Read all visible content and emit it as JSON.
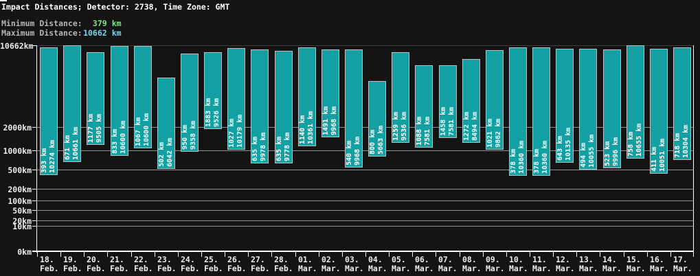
{
  "header": {
    "title": "Impact Distances; Detector: 2738, Time Zone: GMT",
    "min_label": "Minimum Distance:",
    "min_value": "379",
    "max_label": "Maximum Distance:",
    "max_value": "10662",
    "unit": "km"
  },
  "colors": {
    "background": "#151414",
    "bar_fill": "#12a0a3",
    "bar_border": "#bebebe",
    "gridline": "#8f8f8f",
    "top_gridline": "#3e3e3e",
    "axis": "#ffffff",
    "text": "#ececec",
    "stat_label": "#b6b6b6",
    "min_value_color": "#7de87d",
    "max_value_color": "#73d7ea",
    "bar_label_text": "#ffffff"
  },
  "chart_data": {
    "type": "bar",
    "subtype": "floating-range-bars",
    "title": "Impact Distances; Detector: 2738, Time Zone: GMT",
    "legend": "none",
    "grid": "horizontal",
    "y_axis": {
      "unit": "km",
      "scale": "compressed-log (each decade doubles in pixel height)",
      "max_value": 10662,
      "ticks": [
        10662,
        2000,
        1000,
        500,
        200,
        100,
        50,
        20,
        10,
        0
      ]
    },
    "x_axis": {
      "note": "one bar per day",
      "first": "18. Feb.",
      "last": "17. Mar."
    },
    "bars": [
      {
        "day": "18.",
        "month": "Feb.",
        "min": 393,
        "max": 10274
      },
      {
        "day": "19.",
        "month": "Feb.",
        "min": 671,
        "max": 10661
      },
      {
        "day": "20.",
        "month": "Feb.",
        "min": 1177,
        "max": 9505
      },
      {
        "day": "21.",
        "month": "Feb.",
        "min": 833,
        "max": 10600
      },
      {
        "day": "22.",
        "month": "Feb.",
        "min": 1067,
        "max": 10600
      },
      {
        "day": "23.",
        "month": "Feb.",
        "min": 502,
        "max": 6042
      },
      {
        "day": "24.",
        "month": "Feb.",
        "min": 950,
        "max": 9358
      },
      {
        "day": "25.",
        "month": "Feb.",
        "min": 1883,
        "max": 9526
      },
      {
        "day": "26.",
        "month": "Feb.",
        "min": 1027,
        "max": 10179
      },
      {
        "day": "27.",
        "month": "Feb.",
        "min": 635,
        "max": 9978
      },
      {
        "day": "28.",
        "month": "Feb.",
        "min": 635,
        "max": 9778
      },
      {
        "day": "01.",
        "month": "Mar.",
        "min": 1140,
        "max": 10361
      },
      {
        "day": "02.",
        "month": "Mar.",
        "min": 1491,
        "max": 9968
      },
      {
        "day": "03.",
        "month": "Mar.",
        "min": 540,
        "max": 9968
      },
      {
        "day": "04.",
        "month": "Mar.",
        "min": 800,
        "max": 5663
      },
      {
        "day": "05.",
        "month": "Mar.",
        "min": 1259,
        "max": 9536
      },
      {
        "day": "06.",
        "month": "Mar.",
        "min": 1088,
        "max": 7581
      },
      {
        "day": "07.",
        "month": "Mar.",
        "min": 1458,
        "max": 7581
      },
      {
        "day": "08.",
        "month": "Mar.",
        "min": 1272,
        "max": 8494
      },
      {
        "day": "09.",
        "month": "Mar.",
        "min": 1021,
        "max": 9862
      },
      {
        "day": "10.",
        "month": "Mar.",
        "min": 378,
        "max": 10360
      },
      {
        "day": "11.",
        "month": "Mar.",
        "min": 378,
        "max": 10360
      },
      {
        "day": "12.",
        "month": "Mar.",
        "min": 643,
        "max": 10135
      },
      {
        "day": "13.",
        "month": "Mar.",
        "min": 494,
        "max": 10055
      },
      {
        "day": "14.",
        "month": "Mar.",
        "min": 523,
        "max": 9996
      },
      {
        "day": "15.",
        "month": "Mar.",
        "min": 758,
        "max": 10655
      },
      {
        "day": "16.",
        "month": "Mar.",
        "min": 411,
        "max": 10051
      },
      {
        "day": "17.",
        "month": "Mar.",
        "min": 718,
        "max": 10304
      }
    ]
  }
}
